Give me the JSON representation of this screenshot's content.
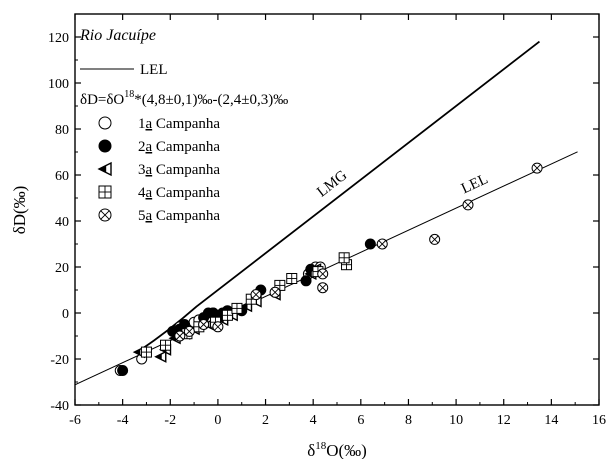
{
  "chart_data": {
    "type": "scatter",
    "title": "Rio Jacuípe",
    "xlabel_prefix": "δ",
    "xlabel_sup": "18",
    "xlabel_suffix": "O(‰)",
    "ylabel": "δD(‰)",
    "xlim": [
      -6,
      16
    ],
    "ylim": [
      -40,
      130
    ],
    "xticks": [
      -6,
      -4,
      -2,
      0,
      2,
      4,
      6,
      8,
      10,
      12,
      14,
      16
    ],
    "yticks": [
      -40,
      -20,
      0,
      20,
      40,
      60,
      80,
      100,
      120
    ],
    "legend_position": "top-left",
    "legend_line_label": "LEL",
    "equation_prefix": "δD=δO",
    "equation_sup": "18",
    "equation_suffix": "*(4,8±0,1)‰-(2,4±0,3)‰",
    "lines": [
      {
        "label": "LMG",
        "slope": 8,
        "intercept": 10,
        "x_range": [
          -3.3,
          13.5
        ]
      },
      {
        "label": "LEL",
        "slope": 4.8,
        "intercept": -2.4,
        "x_range": [
          -6,
          15.1
        ]
      }
    ],
    "series": [
      {
        "name_prefix": "1",
        "name_underlined": "a",
        "name_suffix": " Campanha",
        "marker": "circle-open",
        "points": [
          [
            -4.1,
            -25
          ],
          [
            -3.2,
            -20
          ],
          [
            -1.6,
            -6
          ],
          [
            -1.0,
            -4
          ],
          [
            -0.8,
            -3
          ],
          [
            -0.2,
            0
          ],
          [
            3.8,
            17
          ],
          [
            4.1,
            20
          ],
          [
            4.3,
            20
          ]
        ]
      },
      {
        "name_prefix": "2",
        "name_underlined": "a",
        "name_suffix": " Campanha",
        "marker": "circle-filled",
        "points": [
          [
            -4.0,
            -25
          ],
          [
            -1.9,
            -8
          ],
          [
            -1.6,
            -7
          ],
          [
            -1.4,
            -5
          ],
          [
            -0.6,
            -2
          ],
          [
            -0.4,
            0
          ],
          [
            -0.2,
            0
          ],
          [
            0.0,
            -1
          ],
          [
            0.2,
            0
          ],
          [
            0.4,
            1
          ],
          [
            0.6,
            0
          ],
          [
            1.0,
            1
          ],
          [
            1.8,
            10
          ],
          [
            3.7,
            14
          ],
          [
            3.9,
            19
          ],
          [
            6.4,
            30
          ]
        ]
      },
      {
        "name_prefix": "3",
        "name_underlined": "a",
        "name_suffix": " Campanha",
        "marker": "triangle-left",
        "points": [
          [
            -3.3,
            -17
          ],
          [
            -2.4,
            -19
          ],
          [
            -2.2,
            -16
          ],
          [
            -1.8,
            -11
          ],
          [
            -1.4,
            -9
          ],
          [
            -1.0,
            -7
          ],
          [
            -0.4,
            -5
          ],
          [
            0.2,
            -3
          ],
          [
            0.6,
            -1
          ],
          [
            1.2,
            3
          ],
          [
            1.6,
            5
          ],
          [
            2.4,
            8
          ],
          [
            3.9,
            17
          ],
          [
            4.1,
            19
          ]
        ]
      },
      {
        "name_prefix": "4",
        "name_underlined": "a",
        "name_suffix": " Campanha",
        "marker": "square-cross",
        "points": [
          [
            -3.0,
            -17
          ],
          [
            -2.2,
            -14
          ],
          [
            -1.3,
            -9
          ],
          [
            -0.8,
            -6
          ],
          [
            -0.1,
            -4
          ],
          [
            0.4,
            -1
          ],
          [
            0.8,
            2
          ],
          [
            1.4,
            6
          ],
          [
            2.6,
            12
          ],
          [
            3.1,
            15
          ],
          [
            4.2,
            18
          ],
          [
            5.4,
            21
          ],
          [
            5.3,
            24
          ]
        ]
      },
      {
        "name_prefix": "5",
        "name_underlined": "a",
        "name_suffix": " Campanha",
        "marker": "circle-x",
        "points": [
          [
            -1.6,
            -10
          ],
          [
            -1.2,
            -8
          ],
          [
            -0.6,
            -5
          ],
          [
            0.0,
            -6
          ],
          [
            1.6,
            8
          ],
          [
            2.4,
            9
          ],
          [
            4.4,
            11
          ],
          [
            4.4,
            17
          ],
          [
            6.9,
            30
          ],
          [
            9.1,
            32
          ],
          [
            10.5,
            47
          ],
          [
            13.4,
            63
          ]
        ]
      }
    ]
  }
}
